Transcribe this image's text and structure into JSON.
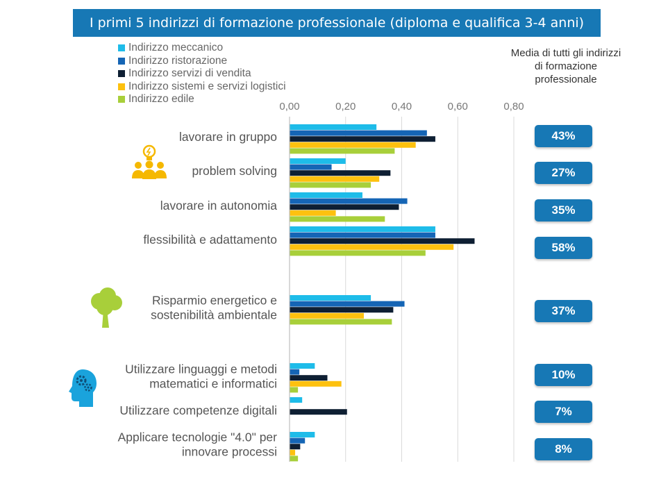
{
  "title": "I primi 5 indirizzi di formazione professionale (diploma e qualifica 3-4 anni)",
  "average_header": "Media di tutti gli indirizzi di formazione professionale",
  "icons": [
    "teamwork-lightbulb-icon",
    "tree-icon",
    "head-gears-icon"
  ],
  "colors": {
    "banner": "#1778b5",
    "badge": "#1778b5",
    "gridline": "#d9d9d9"
  },
  "chart_data": {
    "type": "bar",
    "orientation": "horizontal",
    "xlim": [
      0,
      0.8
    ],
    "ticks": [
      "0,00",
      "0,20",
      "0,40",
      "0,60",
      "0,80"
    ],
    "tick_values": [
      0,
      0.2,
      0.4,
      0.6,
      0.8
    ],
    "grid": true,
    "legend_position": "top-left",
    "categories": [
      "lavorare in gruppo",
      "problem solving",
      "lavorare in autonomia",
      "flessibilità e adattamento",
      "Risparmio energetico e sostenibilità ambientale",
      "Utilizzare linguaggi e metodi matematici e informatici",
      "Utilizzare competenze digitali",
      "Applicare tecnologie \"4.0\" per innovare processi"
    ],
    "category_lines": [
      [
        "lavorare in gruppo"
      ],
      [
        "problem solving"
      ],
      [
        "lavorare in autonomia"
      ],
      [
        "flessibilità e adattamento"
      ],
      [
        "Risparmio energetico e",
        "sostenibilità ambientale"
      ],
      [
        "Utilizzare linguaggi e metodi",
        "matematici e informatici"
      ],
      [
        "Utilizzare competenze digitali"
      ],
      [
        "Applicare tecnologie \"4.0\" per",
        "innovare processi"
      ]
    ],
    "series": [
      {
        "name": "Indirizzo meccanico",
        "color": "#1ebce9",
        "values": [
          0.31,
          0.2,
          0.26,
          0.52,
          0.29,
          0.09,
          0.045,
          0.09
        ]
      },
      {
        "name": "Indirizzo ristorazione",
        "color": "#1565b5",
        "values": [
          0.49,
          0.15,
          0.42,
          0.52,
          0.41,
          0.035,
          0.0,
          0.055
        ]
      },
      {
        "name": "Indirizzo servizi di vendita",
        "color": "#0e1f33",
        "values": [
          0.52,
          0.36,
          0.39,
          0.66,
          0.37,
          0.135,
          0.205,
          0.038
        ]
      },
      {
        "name": "Indirizzo sistemi e servizi logistici",
        "color": "#fdc10f",
        "values": [
          0.45,
          0.32,
          0.165,
          0.585,
          0.265,
          0.185,
          0.0,
          0.02
        ]
      },
      {
        "name": "Indirizzo edile",
        "color": "#a8cf3a",
        "values": [
          0.375,
          0.29,
          0.34,
          0.485,
          0.365,
          0.03,
          0.0,
          0.03
        ]
      }
    ],
    "averages": [
      "43%",
      "27%",
      "35%",
      "58%",
      "37%",
      "10%",
      "7%",
      "8%"
    ]
  }
}
